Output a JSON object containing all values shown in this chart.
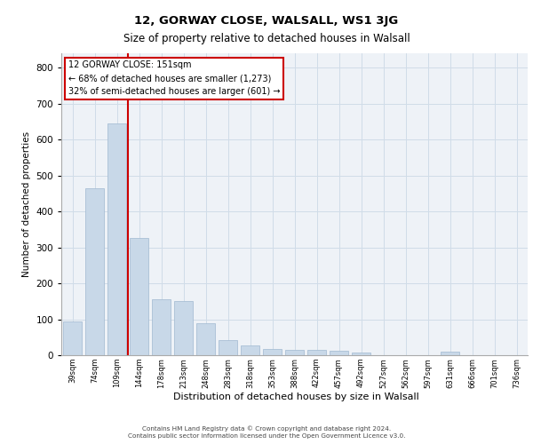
{
  "title1": "12, GORWAY CLOSE, WALSALL, WS1 3JG",
  "title2": "Size of property relative to detached houses in Walsall",
  "xlabel": "Distribution of detached houses by size in Walsall",
  "ylabel": "Number of detached properties",
  "categories": [
    "39sqm",
    "74sqm",
    "109sqm",
    "144sqm",
    "178sqm",
    "213sqm",
    "248sqm",
    "283sqm",
    "318sqm",
    "353sqm",
    "388sqm",
    "422sqm",
    "457sqm",
    "492sqm",
    "527sqm",
    "562sqm",
    "597sqm",
    "631sqm",
    "666sqm",
    "701sqm",
    "736sqm"
  ],
  "values": [
    95,
    465,
    645,
    325,
    155,
    150,
    88,
    42,
    27,
    18,
    16,
    15,
    13,
    7,
    0,
    0,
    0,
    10,
    0,
    0,
    0
  ],
  "bar_color": "#c8d8e8",
  "bar_edge_color": "#a0b8d0",
  "red_line_index": 3,
  "red_line_color": "#cc0000",
  "annotation_title": "12 GORWAY CLOSE: 151sqm",
  "annotation_line1": "← 68% of detached houses are smaller (1,273)",
  "annotation_line2": "32% of semi-detached houses are larger (601) →",
  "annotation_box_color": "#ffffff",
  "annotation_box_edge": "#cc0000",
  "grid_color": "#d0dce8",
  "background_color": "#eef2f7",
  "ylim": [
    0,
    840
  ],
  "yticks": [
    0,
    100,
    200,
    300,
    400,
    500,
    600,
    700,
    800
  ],
  "footer1": "Contains HM Land Registry data © Crown copyright and database right 2024.",
  "footer2": "Contains public sector information licensed under the Open Government Licence v3.0."
}
